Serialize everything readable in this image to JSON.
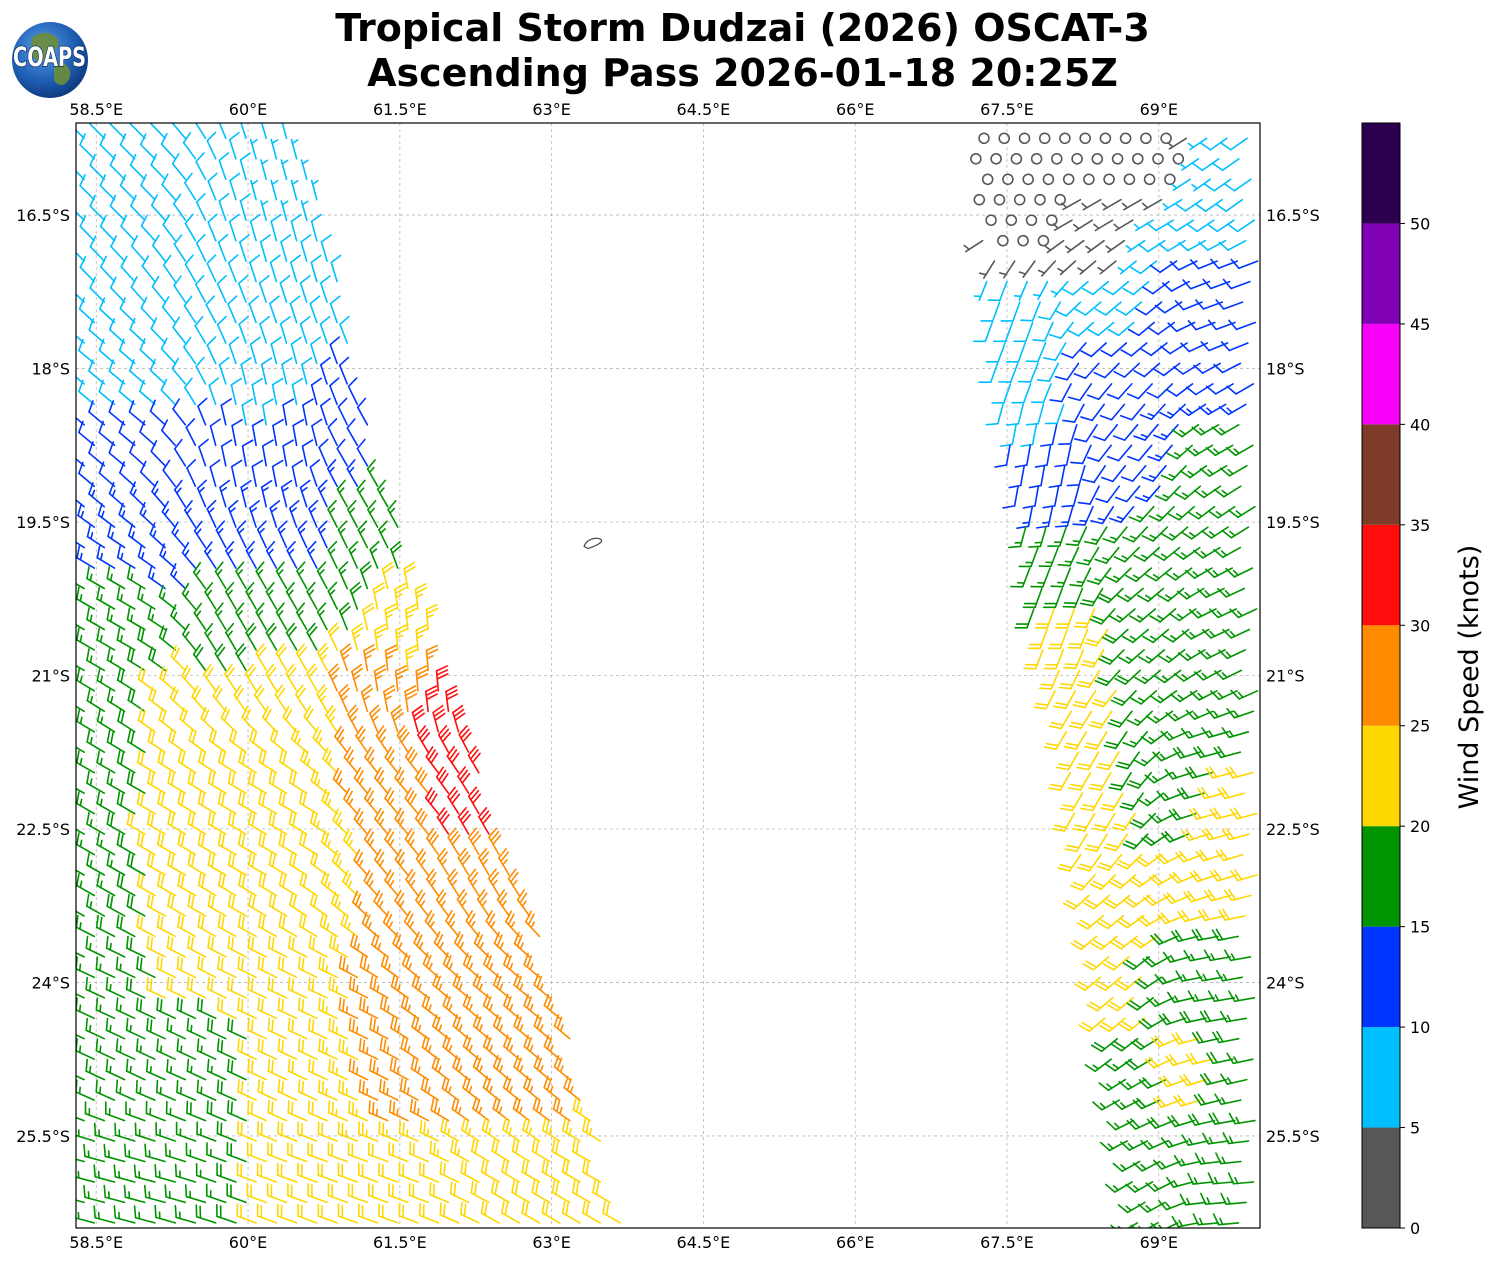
{
  "title": {
    "line1": "Tropical Storm Dudzai (2026) OSCAT-3",
    "line2": "Ascending Pass 2026-01-18 20:25Z"
  },
  "logo": {
    "text": "COAPS",
    "icon": "globe-logo-icon"
  },
  "map": {
    "lon_range": [
      58.3,
      70.0
    ],
    "lat_range": [
      -15.6,
      -26.4
    ],
    "gridlines": true,
    "lon_ticks": [
      "58.5°E",
      "60°E",
      "61.5°E",
      "63°E",
      "64.5°E",
      "66°E",
      "67.5°E",
      "69°E"
    ],
    "lon_tick_values": [
      58.5,
      60,
      61.5,
      63,
      64.5,
      66,
      67.5,
      69
    ],
    "lat_ticks": [
      "16.5°S",
      "18°S",
      "19.5°S",
      "21°S",
      "22.5°S",
      "24°S",
      "25.5°S"
    ],
    "lat_tick_values": [
      -16.5,
      -18,
      -19.5,
      -21,
      -22.5,
      -24,
      -25.5
    ],
    "island": {
      "lon": 63.4,
      "lat": -19.7,
      "name_shown": false
    }
  },
  "colorbar": {
    "label": "Wind Speed (knots)",
    "ticks": [
      "0",
      "5",
      "10",
      "15",
      "20",
      "25",
      "30",
      "35",
      "40",
      "45",
      "50"
    ],
    "bins": [
      {
        "min": 0,
        "max": 5,
        "color": "#575757"
      },
      {
        "min": 5,
        "max": 10,
        "color": "#00bfff"
      },
      {
        "min": 10,
        "max": 15,
        "color": "#0035ff"
      },
      {
        "min": 15,
        "max": 20,
        "color": "#009400"
      },
      {
        "min": 20,
        "max": 25,
        "color": "#ffd700"
      },
      {
        "min": 25,
        "max": 30,
        "color": "#ff8c00"
      },
      {
        "min": 30,
        "max": 35,
        "color": "#ff0d0d"
      },
      {
        "min": 35,
        "max": 40,
        "color": "#7e3b27"
      },
      {
        "min": 40,
        "max": 45,
        "color": "#f700f7"
      },
      {
        "min": 45,
        "max": 50,
        "color": "#8000b4"
      },
      {
        "min": 50,
        "max": 55,
        "color": "#2d004f"
      }
    ]
  },
  "swaths": [
    {
      "name": "west-swath",
      "rows": [
        {
          "lat": -15.8,
          "lon_min": 58.3,
          "lon_max": 60.6
        },
        {
          "lat": -17.0,
          "lon_min": 58.3,
          "lon_max": 60.9
        },
        {
          "lat": -18.5,
          "lon_min": 58.3,
          "lon_max": 61.2
        },
        {
          "lat": -19.5,
          "lon_min": 58.3,
          "lon_max": 61.5
        },
        {
          "lat": -20.5,
          "lon_min": 58.3,
          "lon_max": 61.8
        },
        {
          "lat": -21.5,
          "lon_min": 58.3,
          "lon_max": 62.2
        },
        {
          "lat": -22.5,
          "lon_min": 58.3,
          "lon_max": 62.5
        },
        {
          "lat": -23.5,
          "lon_min": 58.3,
          "lon_max": 62.9
        },
        {
          "lat": -24.5,
          "lon_min": 58.3,
          "lon_max": 63.2
        },
        {
          "lat": -25.5,
          "lon_min": 58.3,
          "lon_max": 63.5
        },
        {
          "lat": -26.3,
          "lon_min": 58.3,
          "lon_max": 63.8
        }
      ]
    },
    {
      "name": "east-swath",
      "rows": [
        {
          "lat": -15.8,
          "lon_min": 67.2,
          "lon_max": 70.0
        },
        {
          "lat": -17.0,
          "lon_min": 67.3,
          "lon_max": 70.0
        },
        {
          "lat": -18.5,
          "lon_min": 67.5,
          "lon_max": 70.0
        },
        {
          "lat": -19.5,
          "lon_min": 67.7,
          "lon_max": 70.0
        },
        {
          "lat": -20.5,
          "lon_min": 67.8,
          "lon_max": 70.0
        },
        {
          "lat": -21.5,
          "lon_min": 68.1,
          "lon_max": 70.0
        },
        {
          "lat": -22.5,
          "lon_min": 68.2,
          "lon_max": 70.0
        },
        {
          "lat": -23.5,
          "lon_min": 68.4,
          "lon_max": 70.0
        },
        {
          "lat": -24.5,
          "lon_min": 68.5,
          "lon_max": 70.0
        },
        {
          "lat": -25.5,
          "lon_min": 68.7,
          "lon_max": 70.0
        },
        {
          "lat": -26.3,
          "lon_min": 68.8,
          "lon_max": 70.0
        }
      ]
    }
  ],
  "wind_field_points": [
    {
      "lon": 58.6,
      "lat": -16.0,
      "kt": 8
    },
    {
      "lon": 59.6,
      "lat": -16.0,
      "kt": 8
    },
    {
      "lon": 60.4,
      "lat": -16.2,
      "kt": 7
    },
    {
      "lon": 58.6,
      "lat": -17.2,
      "kt": 8
    },
    {
      "lon": 59.6,
      "lat": -17.2,
      "kt": 8
    },
    {
      "lon": 60.5,
      "lat": -17.3,
      "kt": 8
    },
    {
      "lon": 58.6,
      "lat": -18.0,
      "kt": 8
    },
    {
      "lon": 59.2,
      "lat": -18.2,
      "kt": 9
    },
    {
      "lon": 60.1,
      "lat": -18.3,
      "kt": 9
    },
    {
      "lon": 58.6,
      "lat": -18.8,
      "kt": 12
    },
    {
      "lon": 59.5,
      "lat": -18.8,
      "kt": 12
    },
    {
      "lon": 60.6,
      "lat": -18.9,
      "kt": 12
    },
    {
      "lon": 61.0,
      "lat": -18.6,
      "kt": 11
    },
    {
      "lon": 58.6,
      "lat": -19.6,
      "kt": 13
    },
    {
      "lon": 59.5,
      "lat": -19.7,
      "kt": 13
    },
    {
      "lon": 60.4,
      "lat": -19.7,
      "kt": 13
    },
    {
      "lon": 61.3,
      "lat": -19.6,
      "kt": 17
    },
    {
      "lon": 58.6,
      "lat": -20.6,
      "kt": 17
    },
    {
      "lon": 59.6,
      "lat": -20.6,
      "kt": 17
    },
    {
      "lon": 60.6,
      "lat": -20.4,
      "kt": 17
    },
    {
      "lon": 61.6,
      "lat": -20.6,
      "kt": 23
    },
    {
      "lon": 58.6,
      "lat": -21.4,
      "kt": 17
    },
    {
      "lon": 59.4,
      "lat": -21.3,
      "kt": 22
    },
    {
      "lon": 60.5,
      "lat": -21.3,
      "kt": 22
    },
    {
      "lon": 61.2,
      "lat": -21.2,
      "kt": 27
    },
    {
      "lon": 61.9,
      "lat": -21.5,
      "kt": 32
    },
    {
      "lon": 58.6,
      "lat": -22.2,
      "kt": 17
    },
    {
      "lon": 59.3,
      "lat": -22.3,
      "kt": 22
    },
    {
      "lon": 60.5,
      "lat": -22.3,
      "kt": 22
    },
    {
      "lon": 61.3,
      "lat": -22.1,
      "kt": 27
    },
    {
      "lon": 62.2,
      "lat": -22.3,
      "kt": 32
    },
    {
      "lon": 58.6,
      "lat": -23.0,
      "kt": 17
    },
    {
      "lon": 59.4,
      "lat": -23.0,
      "kt": 22
    },
    {
      "lon": 60.5,
      "lat": -23.0,
      "kt": 22
    },
    {
      "lon": 61.6,
      "lat": -23.0,
      "kt": 27
    },
    {
      "lon": 62.5,
      "lat": -23.3,
      "kt": 27
    },
    {
      "lon": 58.6,
      "lat": -24.0,
      "kt": 17
    },
    {
      "lon": 59.5,
      "lat": -23.9,
      "kt": 22
    },
    {
      "lon": 60.5,
      "lat": -24.0,
      "kt": 22
    },
    {
      "lon": 61.5,
      "lat": -24.1,
      "kt": 27
    },
    {
      "lon": 62.6,
      "lat": -24.3,
      "kt": 27
    },
    {
      "lon": 58.6,
      "lat": -24.8,
      "kt": 17
    },
    {
      "lon": 59.5,
      "lat": -24.8,
      "kt": 17
    },
    {
      "lon": 60.5,
      "lat": -24.9,
      "kt": 22
    },
    {
      "lon": 61.6,
      "lat": -25.0,
      "kt": 27
    },
    {
      "lon": 62.9,
      "lat": -25.0,
      "kt": 27
    },
    {
      "lon": 58.6,
      "lat": -25.9,
      "kt": 17
    },
    {
      "lon": 59.5,
      "lat": -25.9,
      "kt": 17
    },
    {
      "lon": 60.5,
      "lat": -26.0,
      "kt": 22
    },
    {
      "lon": 61.6,
      "lat": -26.0,
      "kt": 22
    },
    {
      "lon": 62.8,
      "lat": -25.9,
      "kt": 22
    },
    {
      "lon": 63.7,
      "lat": -26.0,
      "kt": 22
    },
    {
      "lon": 67.4,
      "lat": -16.0,
      "kt": 2
    },
    {
      "lon": 68.2,
      "lat": -16.0,
      "kt": 2
    },
    {
      "lon": 69.0,
      "lat": -16.0,
      "kt": 2
    },
    {
      "lon": 69.8,
      "lat": -16.0,
      "kt": 8
    },
    {
      "lon": 67.6,
      "lat": -16.6,
      "kt": 2
    },
    {
      "lon": 68.4,
      "lat": -16.6,
      "kt": 3
    },
    {
      "lon": 69.4,
      "lat": -16.5,
      "kt": 8
    },
    {
      "lon": 67.5,
      "lat": -17.4,
      "kt": 8
    },
    {
      "lon": 68.4,
      "lat": -17.4,
      "kt": 8
    },
    {
      "lon": 69.4,
      "lat": -17.2,
      "kt": 12
    },
    {
      "lon": 67.7,
      "lat": -18.2,
      "kt": 8
    },
    {
      "lon": 68.5,
      "lat": -18.0,
      "kt": 12
    },
    {
      "lon": 69.5,
      "lat": -18.0,
      "kt": 12
    },
    {
      "lon": 67.9,
      "lat": -19.0,
      "kt": 12
    },
    {
      "lon": 68.7,
      "lat": -19.0,
      "kt": 12
    },
    {
      "lon": 69.6,
      "lat": -18.9,
      "kt": 17
    },
    {
      "lon": 68.0,
      "lat": -19.8,
      "kt": 17
    },
    {
      "lon": 68.9,
      "lat": -19.7,
      "kt": 17
    },
    {
      "lon": 69.6,
      "lat": -19.7,
      "kt": 17
    },
    {
      "lon": 68.2,
      "lat": -20.6,
      "kt": 22
    },
    {
      "lon": 69.0,
      "lat": -20.5,
      "kt": 17
    },
    {
      "lon": 69.7,
      "lat": -20.6,
      "kt": 17
    },
    {
      "lon": 68.3,
      "lat": -21.4,
      "kt": 22
    },
    {
      "lon": 69.1,
      "lat": -21.4,
      "kt": 17
    },
    {
      "lon": 69.7,
      "lat": -21.4,
      "kt": 17
    },
    {
      "lon": 68.4,
      "lat": -22.3,
      "kt": 22
    },
    {
      "lon": 69.2,
      "lat": -22.2,
      "kt": 17
    },
    {
      "lon": 69.8,
      "lat": -22.3,
      "kt": 22
    },
    {
      "lon": 68.5,
      "lat": -23.2,
      "kt": 22
    },
    {
      "lon": 69.3,
      "lat": -23.1,
      "kt": 22
    },
    {
      "lon": 69.8,
      "lat": -23.1,
      "kt": 22
    },
    {
      "lon": 68.6,
      "lat": -24.1,
      "kt": 22
    },
    {
      "lon": 69.3,
      "lat": -24.0,
      "kt": 17
    },
    {
      "lon": 69.8,
      "lat": -24.0,
      "kt": 17
    },
    {
      "lon": 68.7,
      "lat": -24.9,
      "kt": 17
    },
    {
      "lon": 69.4,
      "lat": -24.9,
      "kt": 22
    },
    {
      "lon": 69.8,
      "lat": -25.0,
      "kt": 17
    },
    {
      "lon": 68.8,
      "lat": -25.8,
      "kt": 17
    },
    {
      "lon": 69.4,
      "lat": -25.8,
      "kt": 17
    },
    {
      "lon": 69.8,
      "lat": -26.0,
      "kt": 17
    }
  ],
  "wind_dir_points": [
    {
      "lon": 58.6,
      "lat": -16.0,
      "deg": 315
    },
    {
      "lon": 60.5,
      "lat": -16.3,
      "deg": 345
    },
    {
      "lon": 58.6,
      "lat": -18.5,
      "deg": 310
    },
    {
      "lon": 60.3,
      "lat": -18.8,
      "deg": 350
    },
    {
      "lon": 61.2,
      "lat": -19.0,
      "deg": 330
    },
    {
      "lon": 58.6,
      "lat": -20.5,
      "deg": 300
    },
    {
      "lon": 60.2,
      "lat": -20.6,
      "deg": 330
    },
    {
      "lon": 61.8,
      "lat": -20.9,
      "deg": 355
    },
    {
      "lon": 58.6,
      "lat": -22.5,
      "deg": 300
    },
    {
      "lon": 60.2,
      "lat": -22.5,
      "deg": 300
    },
    {
      "lon": 61.6,
      "lat": -22.4,
      "deg": 320
    },
    {
      "lon": 62.3,
      "lat": -22.6,
      "deg": 330
    },
    {
      "lon": 58.6,
      "lat": -24.5,
      "deg": 295
    },
    {
      "lon": 60.5,
      "lat": -24.5,
      "deg": 295
    },
    {
      "lon": 62.8,
      "lat": -24.5,
      "deg": 310
    },
    {
      "lon": 58.6,
      "lat": -26.2,
      "deg": 285
    },
    {
      "lon": 61.0,
      "lat": -26.2,
      "deg": 290
    },
    {
      "lon": 63.6,
      "lat": -26.2,
      "deg": 300
    },
    {
      "lon": 67.5,
      "lat": -16.2,
      "deg": 250
    },
    {
      "lon": 68.8,
      "lat": -16.2,
      "deg": 240
    },
    {
      "lon": 69.8,
      "lat": -16.2,
      "deg": 235
    },
    {
      "lon": 67.5,
      "lat": -17.5,
      "deg": 200
    },
    {
      "lon": 68.7,
      "lat": -17.3,
      "deg": 230
    },
    {
      "lon": 69.8,
      "lat": -17.3,
      "deg": 250
    },
    {
      "lon": 67.8,
      "lat": -18.9,
      "deg": 190
    },
    {
      "lon": 68.9,
      "lat": -18.7,
      "deg": 220
    },
    {
      "lon": 69.8,
      "lat": -18.6,
      "deg": 240
    },
    {
      "lon": 68.0,
      "lat": -20.4,
      "deg": 200
    },
    {
      "lon": 69.0,
      "lat": -20.4,
      "deg": 230
    },
    {
      "lon": 69.8,
      "lat": -20.4,
      "deg": 245
    },
    {
      "lon": 68.3,
      "lat": -22.0,
      "deg": 210
    },
    {
      "lon": 69.8,
      "lat": -22.0,
      "deg": 255
    },
    {
      "lon": 68.5,
      "lat": -24.0,
      "deg": 230
    },
    {
      "lon": 69.8,
      "lat": -24.0,
      "deg": 260
    },
    {
      "lon": 68.8,
      "lat": -26.2,
      "deg": 240
    },
    {
      "lon": 69.8,
      "lat": -26.2,
      "deg": 265
    }
  ]
}
